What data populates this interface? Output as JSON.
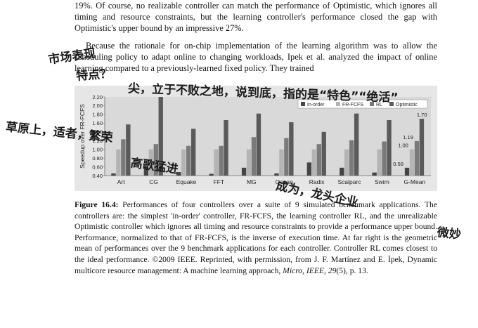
{
  "text": {
    "para1": "19%. Of course, no realizable controller can match the performance of Optimistic, which ignores all timing and resource constraints, but the learning controller's performance closed the gap with Optimistic's upper bound by an impressive 27%.",
    "para2": "Because the rationale for on-chip implementation of the learning algorithm was to allow the scheduling policy to adapt online to changing workloads, Ipek et al. analyzed the impact of online learning compared to a previously-learned fixed policy. They trained",
    "caption_label": "Figure 16.4:",
    "caption_body": "Performances of four controllers over a suite of 9 simulated benchmark applications. The controllers are: the simplest 'in-order' controller, FR-FCFS, the learning controller RL, and the unrealizable Optimistic controller which ignores all timing and resource constraints to provide a performance upper bound. Performance, normalized to that of FR-FCFS, is the inverse of execution time. At far right is the geometric mean of performances over the 9 benchmark applications for each controller. Controller RL comes closest to the ideal performance. ©2009 IEEE. Reprinted, with permission, from J. F. Martínez and E. İpek, Dynamic multicore resource management: A machine learning approach, ",
    "caption_journal": "Micro, IEEE, 29",
    "caption_tail": "(5), p. 13."
  },
  "chart_data": {
    "type": "bar",
    "ylabel": "Speedup over FR-FCFS",
    "ylim": [
      0.4,
      2.2
    ],
    "yticks": [
      "0.40",
      "0.60",
      "0.80",
      "1.00",
      "1.20",
      "1.40",
      "1.60",
      "1.80",
      "2.00",
      "2.20"
    ],
    "categories": [
      "Art",
      "CG",
      "Equake",
      "FFT",
      "MG",
      "Ocean",
      "Radix",
      "Scalparc",
      "Swim",
      "G-Mean"
    ],
    "series": [
      {
        "name": "In-order",
        "color": "#454545",
        "values": [
          0.45,
          0.6,
          0.48,
          0.44,
          0.58,
          0.45,
          0.7,
          0.58,
          0.47,
          0.58
        ]
      },
      {
        "name": "FR-FCFS",
        "color": "#b4b4b4",
        "values": [
          1.0,
          1.0,
          1.0,
          1.0,
          1.0,
          1.0,
          1.0,
          1.0,
          1.0,
          1.0
        ]
      },
      {
        "name": "RL",
        "color": "#7a7a7a",
        "values": [
          1.23,
          1.12,
          1.08,
          1.08,
          1.28,
          1.26,
          1.12,
          1.21,
          1.18,
          1.19
        ]
      },
      {
        "name": "Optimistic",
        "color": "#5a5a5a",
        "values": [
          1.57,
          2.2,
          1.47,
          1.67,
          1.82,
          1.62,
          1.4,
          1.82,
          1.67,
          1.7
        ]
      }
    ],
    "data_labels": [
      "0.58",
      "1.00",
      "1.19",
      "1.70"
    ],
    "legend_position": "top-right",
    "grid": false
  },
  "handwriting": [
    "市场表现",
    "特点？",
    "尖，立于不败之地，说到底，指的是“特色”“绝活”",
    "草原上，适者，繁荣",
    "高歌猛进",
    "成为，龙头企业",
    "微妙"
  ]
}
